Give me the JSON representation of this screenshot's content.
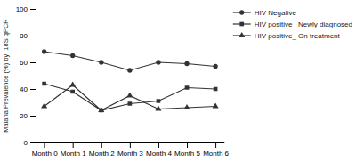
{
  "chart_data": {
    "type": "line",
    "categories": [
      "Month 0",
      "Month 1",
      "Month 2",
      "Month 3",
      "Month 4",
      "Month 5",
      "Month 6"
    ],
    "series": [
      {
        "name": "HIV Negative",
        "color": "#333333",
        "marker": "circle",
        "values": [
          68,
          65,
          60,
          54,
          60,
          59,
          57
        ]
      },
      {
        "name": "HIV positive_ Newly diagnosed",
        "color": "#333333",
        "marker": "square",
        "values": [
          44,
          38,
          24,
          29,
          31,
          41,
          40
        ]
      },
      {
        "name": "HIV positive_ On treatment",
        "color": "#333333",
        "marker": "triangle",
        "values": [
          27,
          43,
          24,
          35,
          25,
          26,
          27
        ]
      }
    ],
    "y_label": "Malaria Prevalence (%) by  18S qPCR",
    "ylim": [
      0,
      100
    ],
    "yticks": [
      0,
      20,
      40,
      60,
      80,
      100
    ],
    "grid": false,
    "legend": "right"
  }
}
